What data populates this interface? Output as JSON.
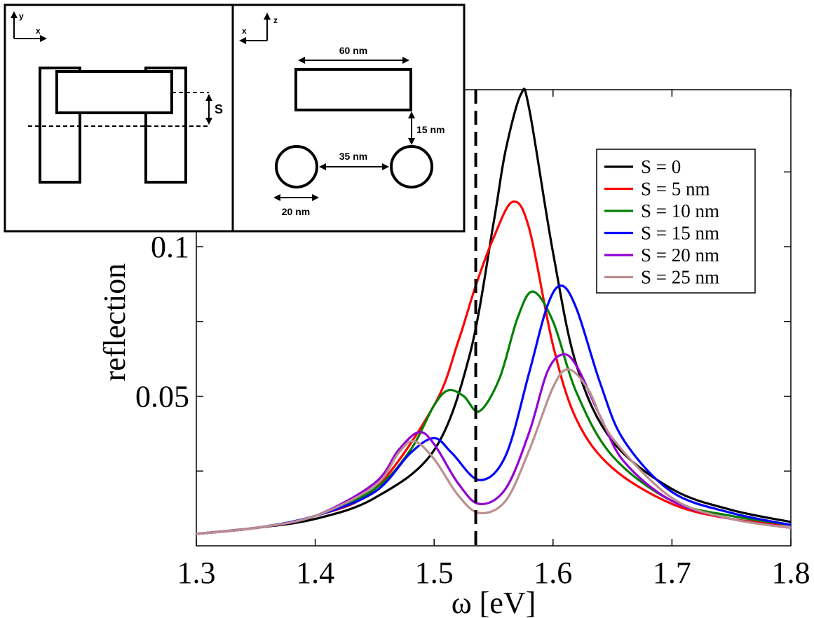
{
  "chart_data": {
    "type": "line",
    "xlabel": "ω [eV]",
    "ylabel": "reflection",
    "xlim": [
      1.3,
      1.8
    ],
    "ylim": [
      0.0,
      0.1525
    ],
    "x_ticks": [
      1.3,
      1.4,
      1.5,
      1.6,
      1.7,
      1.8
    ],
    "x_tick_labels": [
      "1.3",
      "1.4",
      "1.5",
      "1.6",
      "1.7",
      "1.8"
    ],
    "y_ticks": [
      0.025,
      0.05,
      0.075,
      0.1,
      0.125
    ],
    "y_tick_labels": [
      "0.05",
      "0.1"
    ],
    "y_tick_label_values": [
      0.05,
      0.1
    ],
    "grid": false,
    "legend_position": "right",
    "vertical_line": {
      "x": 1.535,
      "style": "dashed"
    },
    "series": [
      {
        "name": "S = 0",
        "color": "#000000",
        "x": [
          1.3,
          1.35,
          1.4,
          1.45,
          1.5,
          1.53,
          1.55,
          1.56,
          1.573,
          1.58,
          1.6,
          1.62,
          1.65,
          1.7,
          1.75,
          1.8
        ],
        "y": [
          0.004,
          0.006,
          0.009,
          0.016,
          0.032,
          0.064,
          0.108,
          0.132,
          0.151,
          0.146,
          0.098,
          0.06,
          0.035,
          0.019,
          0.012,
          0.008
        ]
      },
      {
        "name": "S = 5 nm",
        "color": "#ff0000",
        "x": [
          1.3,
          1.35,
          1.4,
          1.45,
          1.5,
          1.52,
          1.535,
          1.55,
          1.566,
          1.58,
          1.6,
          1.62,
          1.65,
          1.7,
          1.75,
          1.8
        ],
        "y": [
          0.004,
          0.006,
          0.01,
          0.019,
          0.047,
          0.068,
          0.087,
          0.103,
          0.115,
          0.106,
          0.067,
          0.042,
          0.026,
          0.014,
          0.009,
          0.007
        ]
      },
      {
        "name": "S = 10 nm",
        "color": "#008000",
        "x": [
          1.3,
          1.35,
          1.4,
          1.45,
          1.48,
          1.5,
          1.512,
          1.525,
          1.538,
          1.555,
          1.57,
          1.583,
          1.6,
          1.62,
          1.65,
          1.7,
          1.75,
          1.8
        ],
        "y": [
          0.004,
          0.006,
          0.01,
          0.019,
          0.032,
          0.047,
          0.052,
          0.05,
          0.045,
          0.056,
          0.076,
          0.085,
          0.075,
          0.051,
          0.03,
          0.015,
          0.01,
          0.007
        ]
      },
      {
        "name": "S = 15 nm",
        "color": "#0000ff",
        "x": [
          1.3,
          1.35,
          1.4,
          1.45,
          1.48,
          1.5,
          1.515,
          1.538,
          1.56,
          1.58,
          1.595,
          1.607,
          1.62,
          1.64,
          1.66,
          1.7,
          1.75,
          1.8
        ],
        "y": [
          0.004,
          0.006,
          0.01,
          0.018,
          0.031,
          0.036,
          0.031,
          0.022,
          0.03,
          0.058,
          0.08,
          0.087,
          0.079,
          0.054,
          0.035,
          0.018,
          0.011,
          0.007
        ]
      },
      {
        "name": "S = 20 nm",
        "color": "#9400d3",
        "x": [
          1.3,
          1.35,
          1.4,
          1.45,
          1.47,
          1.487,
          1.5,
          1.52,
          1.538,
          1.56,
          1.58,
          1.595,
          1.608,
          1.62,
          1.64,
          1.66,
          1.7,
          1.75,
          1.8
        ],
        "y": [
          0.004,
          0.006,
          0.01,
          0.021,
          0.032,
          0.038,
          0.034,
          0.021,
          0.014,
          0.019,
          0.038,
          0.058,
          0.064,
          0.06,
          0.043,
          0.028,
          0.015,
          0.009,
          0.006
        ]
      },
      {
        "name": "S = 25 nm",
        "color": "#bc8f8f",
        "x": [
          1.3,
          1.35,
          1.4,
          1.45,
          1.47,
          1.483,
          1.5,
          1.52,
          1.538,
          1.56,
          1.58,
          1.6,
          1.613,
          1.63,
          1.65,
          1.7,
          1.75,
          1.8
        ],
        "y": [
          0.004,
          0.006,
          0.01,
          0.02,
          0.031,
          0.035,
          0.029,
          0.017,
          0.011,
          0.015,
          0.032,
          0.053,
          0.059,
          0.052,
          0.036,
          0.016,
          0.009,
          0.006
        ]
      }
    ]
  },
  "inset": {
    "left_panel": {
      "axis_vertical": "y",
      "axis_horizontal": "x",
      "spacing_label": "S"
    },
    "right_panel": {
      "axis_vertical": "z",
      "axis_horizontal": "x",
      "length_label": "60 nm",
      "gap_label": "15 nm",
      "separation_label": "35 nm",
      "diameter_label": "20 nm"
    }
  }
}
